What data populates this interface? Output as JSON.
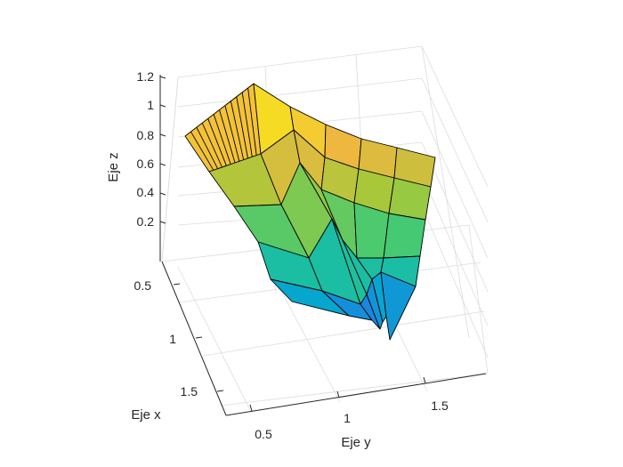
{
  "chart_data": {
    "type": "surface",
    "xlabel": "Eje x",
    "ylabel": "Eje y",
    "zlabel": "Eje z",
    "x_ticks": [
      "0.5",
      "1",
      "1.5"
    ],
    "y_ticks": [
      "0.5",
      "1",
      "1.5"
    ],
    "z_ticks": [
      "0.2",
      "0.4",
      "0.6",
      "0.8",
      "1",
      "1.2"
    ],
    "colormap": [
      "#440154",
      "#3e4bff",
      "#00b3c8",
      "#39c97a",
      "#a4c93a",
      "#f2b640",
      "#f9fb0e"
    ],
    "grid": true,
    "surface_rows": [
      [
        [
          208,
          153
        ],
        [
          285,
          94
        ],
        [
          326,
          120
        ],
        [
          366,
          140
        ],
        [
          406,
          156
        ],
        [
          446,
          166
        ],
        [
          489,
          177
        ]
      ],
      [
        [
          235,
          193
        ],
        [
          293,
          173
        ],
        [
          330,
          146
        ],
        [
          365,
          177
        ],
        [
          403,
          190
        ],
        [
          443,
          200
        ],
        [
          484,
          210
        ]
      ],
      [
        [
          263,
          232
        ],
        [
          316,
          230
        ],
        [
          337,
          183
        ],
        [
          361,
          213
        ],
        [
          398,
          228
        ],
        [
          437,
          240
        ],
        [
          478,
          247
        ]
      ],
      [
        [
          290,
          272
        ],
        [
          347,
          290
        ],
        [
          373,
          246
        ],
        [
          385,
          270
        ],
        [
          401,
          290
        ],
        [
          431,
          290
        ],
        [
          472,
          288
        ]
      ],
      [
        [
          304,
          314
        ],
        [
          362,
          327
        ],
        [
          405,
          342
        ],
        [
          412,
          331
        ],
        [
          418,
          314
        ],
        [
          428,
          306
        ],
        [
          467,
          322
        ]
      ],
      [
        [
          328,
          339
        ],
        [
          392,
          355
        ],
        [
          418,
          360
        ],
        [
          427,
          370
        ],
        [
          430,
          362
        ],
        [
          434,
          356
        ],
        [
          438,
          382
        ]
      ]
    ]
  }
}
